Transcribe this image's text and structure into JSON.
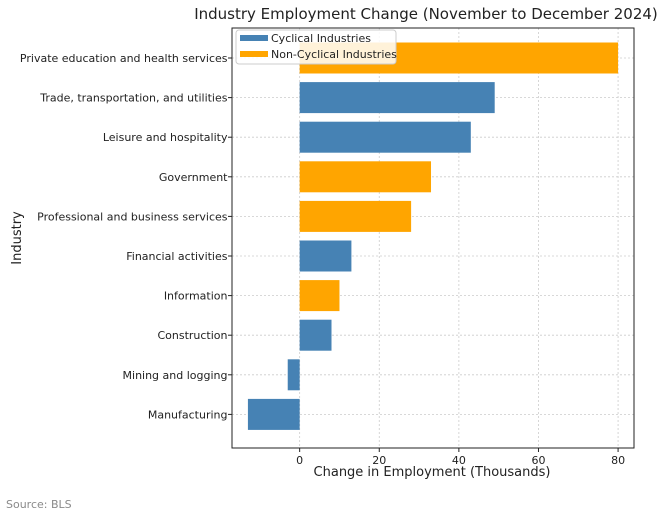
{
  "chart_data": {
    "type": "bar",
    "orientation": "horizontal",
    "title": "Industry Employment Change (November to December 2024)",
    "xlabel": "Change in Employment (Thousands)",
    "ylabel": "Industry",
    "xlim": [
      -17,
      84
    ],
    "xticks": [
      0,
      20,
      40,
      60,
      80
    ],
    "grid": true,
    "legend_position": "top-left",
    "categories": [
      "Private education and health services",
      "Trade, transportation, and utilities",
      "Leisure and hospitality",
      "Government",
      "Professional and business services",
      "Financial activities",
      "Information",
      "Construction",
      "Mining and logging",
      "Manufacturing"
    ],
    "values": [
      80,
      49,
      43,
      33,
      28,
      13,
      10,
      8,
      -3,
      -13
    ],
    "groups": [
      "Non-Cyclical Industries",
      "Cyclical Industries",
      "Cyclical Industries",
      "Non-Cyclical Industries",
      "Non-Cyclical Industries",
      "Cyclical Industries",
      "Non-Cyclical Industries",
      "Cyclical Industries",
      "Cyclical Industries",
      "Cyclical Industries"
    ],
    "legend": [
      {
        "name": "Cyclical Industries",
        "color": "#4682b4"
      },
      {
        "name": "Non-Cyclical Industries",
        "color": "#ffa500"
      }
    ]
  },
  "source": "Source: BLS"
}
